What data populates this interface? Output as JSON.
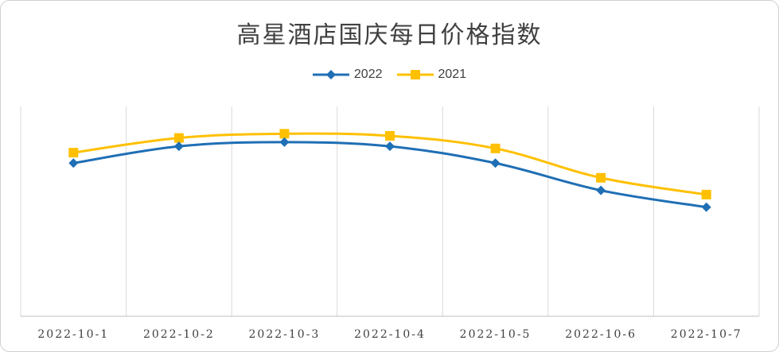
{
  "chart_data": {
    "type": "line",
    "title": "高星酒店国庆每日价格指数",
    "xlabel": "",
    "ylabel": "",
    "categories": [
      "2022-10-1",
      "2022-10-2",
      "2022-10-3",
      "2022-10-4",
      "2022-10-5",
      "2022-10-6",
      "2022-10-7"
    ],
    "ylim": [
      0,
      100
    ],
    "grid": "vertical",
    "legend_position": "top",
    "series": [
      {
        "name": "2022",
        "color": "#1f6fb5",
        "marker": "diamond",
        "values": [
          73,
          81,
          83,
          81,
          73,
          60,
          52
        ]
      },
      {
        "name": "2021",
        "color": "#ffc000",
        "marker": "square",
        "values": [
          78,
          85,
          87,
          86,
          80,
          66,
          58
        ]
      }
    ]
  }
}
